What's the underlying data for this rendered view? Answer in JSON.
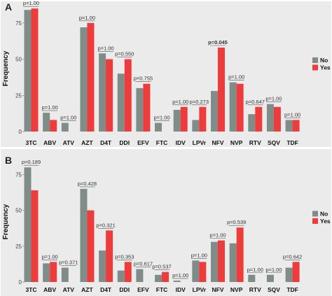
{
  "chart_data": [
    {
      "type": "bar",
      "panel": "A",
      "ylabel": "Frequency",
      "ylim": [
        0,
        87
      ],
      "yticks": [
        "0",
        "25",
        "50",
        "75"
      ],
      "categories": [
        "3TC",
        "ABV",
        "ATV",
        "AZT",
        "D4T",
        "DDI",
        "EFV",
        "FTC",
        "IDV",
        "LPVr",
        "NFV",
        "NVP",
        "RTV",
        "SQV",
        "TDF"
      ],
      "series": [
        {
          "name": "No",
          "color": "#7f8c88",
          "values": [
            84,
            13,
            6,
            72,
            54,
            40,
            30,
            6,
            15,
            8,
            28,
            34,
            12,
            19,
            8
          ]
        },
        {
          "name": "Yes",
          "color": "#ee3b3b",
          "values": [
            85,
            8,
            null,
            75,
            50,
            50,
            33,
            null,
            17,
            17,
            58,
            33,
            17,
            17,
            8
          ]
        }
      ],
      "pvalues": [
        "p=1.00",
        "p=1.00",
        "p=1.00",
        "p=1.00",
        "p=1.00",
        "p=0.550",
        "p=0.755",
        "p=1.00",
        "p=1.00",
        "p=0.273",
        "p=0.045",
        "p=1.00",
        "p=0.647",
        "p=1.00",
        "p=1.00"
      ],
      "significant": [
        false,
        false,
        false,
        false,
        false,
        false,
        false,
        false,
        false,
        false,
        true,
        false,
        false,
        false,
        false
      ],
      "grid": false,
      "legend_position": "right"
    },
    {
      "type": "bar",
      "panel": "B",
      "ylabel": "Frequency",
      "ylim": [
        0,
        84
      ],
      "yticks": [
        "0",
        "25",
        "50",
        "75"
      ],
      "categories": [
        "3TC",
        "ABV",
        "ATV",
        "AZT",
        "D4T",
        "DDI",
        "EFV",
        "FTC",
        "IDV",
        "LPVr",
        "NFV",
        "NVP",
        "RTV",
        "SQV",
        "TDF"
      ],
      "series": [
        {
          "name": "No",
          "color": "#7f8c88",
          "values": [
            80,
            13,
            10,
            65,
            22,
            8,
            9,
            5,
            1,
            15,
            28,
            27,
            5,
            5,
            10
          ]
        },
        {
          "name": "Yes",
          "color": "#ee3b3b",
          "values": [
            64,
            14,
            null,
            50,
            36,
            14,
            null,
            7,
            null,
            14,
            29,
            38,
            null,
            null,
            14
          ]
        }
      ],
      "pvalues": [
        "p=0.189",
        "p=1.00",
        "p=0.371",
        "p=0.428",
        "p=0.321",
        "p=0.353",
        "p=0.617",
        "p=0.537",
        "p=1.00",
        "p=1.00",
        "p=1.00",
        "p=0.539",
        "p=1.00",
        "p=1.00",
        "p=0.642"
      ],
      "significant": [
        false,
        false,
        false,
        false,
        false,
        false,
        false,
        false,
        false,
        false,
        false,
        false,
        false,
        false,
        false
      ],
      "grid": false,
      "legend_position": "right"
    }
  ],
  "legend": {
    "items": [
      "No",
      "Yes"
    ]
  },
  "panel_bg": "#ebebeb"
}
